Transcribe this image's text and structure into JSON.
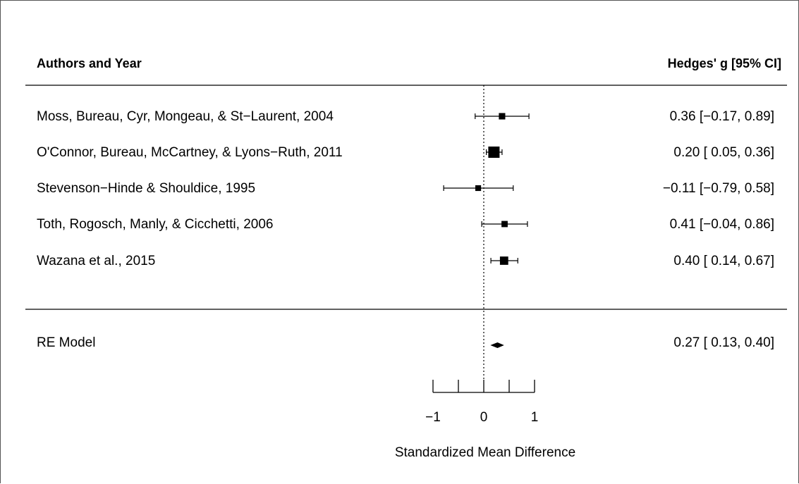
{
  "chart_data": {
    "type": "forest",
    "header_left": "Authors and Year",
    "header_right": "Hedges' g [95% CI]",
    "xlabel": "Standardized Mean Difference",
    "xlim": [
      -1.5,
      1.5
    ],
    "ticks": [
      -1,
      -0.5,
      0,
      0.5,
      1
    ],
    "tick_labels": [
      "−1",
      "0",
      "1"
    ],
    "tick_label_values": [
      -1,
      0,
      1
    ],
    "reference_line": 0,
    "studies": [
      {
        "label": "Moss, Bureau, Cyr, Mongeau, & St−Laurent, 2004",
        "estimate": 0.36,
        "lower": -0.17,
        "upper": 0.89,
        "ci_text": "0.36 [−0.17, 0.89]",
        "weight": 0.18
      },
      {
        "label": "O'Connor, Bureau, McCartney, & Lyons−Ruth, 2011",
        "estimate": 0.2,
        "lower": 0.05,
        "upper": 0.36,
        "ci_text": "0.20 [ 0.05, 0.36]",
        "weight": 1.0
      },
      {
        "label": "Stevenson−Hinde & Shouldice, 1995",
        "estimate": -0.11,
        "lower": -0.79,
        "upper": 0.58,
        "ci_text": "−0.11 [−0.79, 0.58]",
        "weight": 0.12
      },
      {
        "label": "Toth, Rogosch, Manly, & Cicchetti, 2006",
        "estimate": 0.41,
        "lower": -0.04,
        "upper": 0.86,
        "ci_text": "0.41 [−0.04, 0.86]",
        "weight": 0.16
      },
      {
        "label": "Wazana et al., 2015",
        "estimate": 0.4,
        "lower": 0.14,
        "upper": 0.67,
        "ci_text": "0.40 [ 0.14, 0.67]",
        "weight": 0.42
      }
    ],
    "summary": {
      "label": "RE Model",
      "estimate": 0.27,
      "lower": 0.13,
      "upper": 0.4,
      "ci_text": "0.27 [ 0.13, 0.40]"
    }
  }
}
